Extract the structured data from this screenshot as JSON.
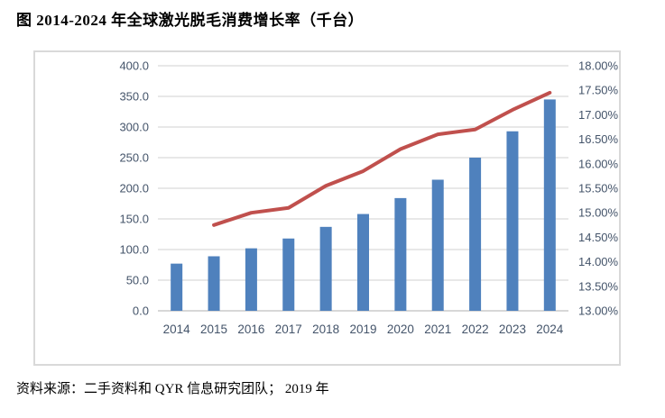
{
  "title": "图 2014-2024 年全球激光脱毛消费增长率（千台）",
  "source": "资料来源：二手资料和 QYR 信息研究团队； 2019 年",
  "colors": {
    "bar": "#4F81BD",
    "line": "#C0504D",
    "grid": "#D9D9D9",
    "axis_line": "#BFBFBF",
    "axis_text": "#44546A",
    "frame_border": "#D9D9D9",
    "background": "#FFFFFF"
  },
  "chart_data": {
    "type": "bar",
    "subtype": "bar-with-line-combo",
    "title": "图 2014-2024 年全球激光脱毛消费增长率（千台）",
    "xlabel": "",
    "ylabel": "",
    "grid": true,
    "legend_position": "none",
    "categories": [
      "2014",
      "2015",
      "2016",
      "2017",
      "2018",
      "2019",
      "2020",
      "2021",
      "2022",
      "2023",
      "2024"
    ],
    "series": [
      {
        "name": "消费量（千台）",
        "type": "bar",
        "axis": "left",
        "values": [
          77,
          89,
          102,
          118,
          137,
          158,
          184,
          214,
          250,
          293,
          345
        ]
      },
      {
        "name": "增长率",
        "type": "line",
        "axis": "right",
        "values": [
          null,
          14.75,
          15.0,
          15.1,
          15.55,
          15.85,
          16.3,
          16.6,
          16.7,
          17.1,
          17.45
        ]
      }
    ],
    "left_axis": {
      "min": 0,
      "max": 400,
      "step": 50,
      "labels": [
        "400.0",
        "350.0",
        "300.0",
        "250.0",
        "200.0",
        "150.0",
        "100.0",
        "50.0",
        "0.0"
      ]
    },
    "right_axis": {
      "min": 13,
      "max": 18,
      "step": 0.5,
      "labels": [
        "18.00%",
        "17.50%",
        "17.00%",
        "16.50%",
        "16.00%",
        "15.50%",
        "15.00%",
        "14.50%",
        "14.00%",
        "13.50%",
        "13.00%"
      ]
    }
  }
}
